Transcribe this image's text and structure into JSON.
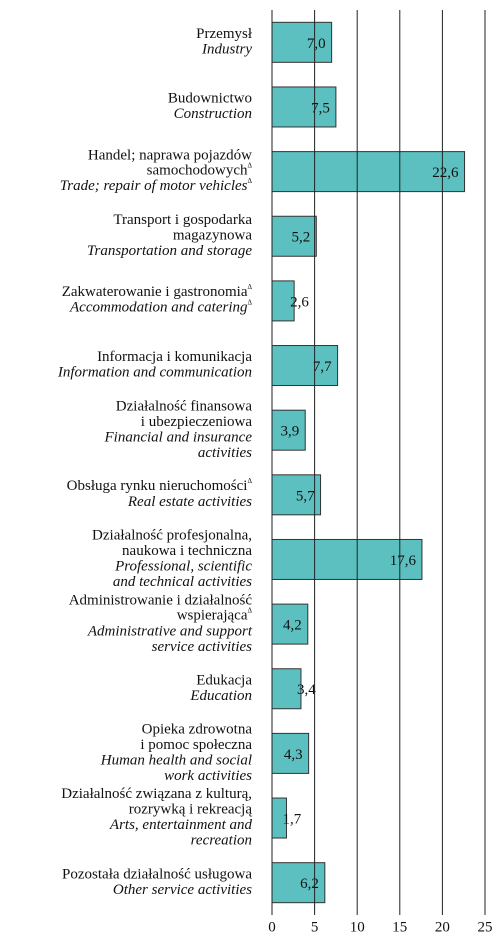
{
  "chart_data": {
    "type": "barh",
    "categories": [
      {
        "pl": [
          "Przemysł"
        ],
        "en": [
          "Industry"
        ]
      },
      {
        "pl": [
          "Budownictwo"
        ],
        "en": [
          "Construction"
        ]
      },
      {
        "pl": [
          "Handel; naprawa pojazdów",
          "samochodowychΔ"
        ],
        "en": [
          "Trade; repair of motor vehiclesΔ"
        ]
      },
      {
        "pl": [
          "Transport i gospodarka",
          "magazynowa"
        ],
        "en": [
          "Transportation and storage"
        ]
      },
      {
        "pl": [
          "Zakwaterowanie i gastronomiaΔ"
        ],
        "en": [
          "Accommodation and cateringΔ"
        ]
      },
      {
        "pl": [
          "Informacja i komunikacja"
        ],
        "en": [
          "Information and communication"
        ]
      },
      {
        "pl": [
          "Działalność finansowa",
          "i ubezpieczeniowa"
        ],
        "en": [
          "Financial and insurance",
          "activities"
        ]
      },
      {
        "pl": [
          "Obsługa rynku nieruchomościΔ"
        ],
        "en": [
          "Real estate activities"
        ]
      },
      {
        "pl": [
          "Działalność profesjonalna,",
          "naukowa i techniczna"
        ],
        "en": [
          "Professional, scientific",
          "and technical activities"
        ]
      },
      {
        "pl": [
          "Administrowanie i działalność",
          "wspierającaΔ"
        ],
        "en": [
          "Administrative and support",
          "service activities"
        ]
      },
      {
        "pl": [
          "Edukacja"
        ],
        "en": [
          "Education"
        ]
      },
      {
        "pl": [
          "Opieka zdrowotna",
          "i pomoc społeczna"
        ],
        "en": [
          "Human health and social",
          "work activities"
        ]
      },
      {
        "pl": [
          "Działalność związana z kulturą,",
          "rozrywką i rekreacją"
        ],
        "en": [
          "Arts, entertainment and",
          "recreation"
        ]
      },
      {
        "pl": [
          "Pozostała działalność usługowa"
        ],
        "en": [
          "Other service activities"
        ]
      }
    ],
    "values": [
      7.0,
      7.5,
      22.6,
      5.2,
      2.6,
      7.7,
      3.9,
      5.7,
      17.6,
      4.2,
      3.4,
      4.3,
      1.7,
      6.2
    ],
    "value_labels": [
      "7,0",
      "7,5",
      "22,6",
      "5,2",
      "2,6",
      "7,7",
      "3,9",
      "5,7",
      "17,6",
      "4,2",
      "3,4",
      "4,3",
      "1,7",
      "6,2"
    ],
    "color": "#5cc0c0",
    "xlim": [
      0,
      25
    ],
    "xticks": [
      0,
      5,
      10,
      15,
      20,
      25
    ],
    "grid": true
  }
}
